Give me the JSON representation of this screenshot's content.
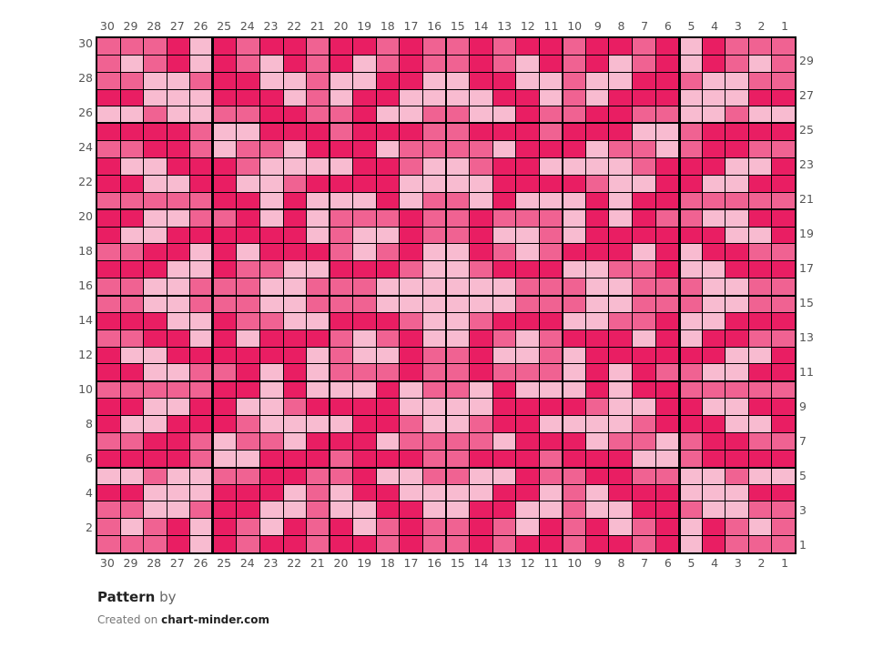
{
  "palette": {
    "D": "#E91E63",
    "M": "#F06292",
    "L": "#F8BBD0"
  },
  "grid": {
    "columns": 30,
    "rows": 30,
    "column_labels": [
      "30",
      "29",
      "28",
      "27",
      "26",
      "25",
      "24",
      "23",
      "22",
      "21",
      "20",
      "19",
      "18",
      "17",
      "16",
      "15",
      "14",
      "13",
      "12",
      "11",
      "10",
      "9",
      "8",
      "7",
      "6",
      "5",
      "4",
      "3",
      "2",
      "1"
    ],
    "left_row_labels": [
      "30",
      "28",
      "26",
      "24",
      "22",
      "20",
      "18",
      "16",
      "14",
      "12",
      "10",
      "8",
      "6",
      "4",
      "2"
    ],
    "right_row_labels": [
      "29",
      "27",
      "25",
      "23",
      "21",
      "19",
      "17",
      "15",
      "13",
      "11",
      "9",
      "7",
      "5",
      "3",
      "1"
    ],
    "cells_top_to_bottom": [
      "MMMDLDMDDMDDMDMMDMDDMDDMDLDMMM",
      "MLMDLDMLDMDLMDMMDMLDMDLMDLDMLM",
      "MMLLMDDLLMLLDDLLDDLLMLLDDMLLMM",
      "DDLLLDDDLMLDDLLLLDDLMLDDDLLLDD",
      "LLMLLMMDDMMDLLMMLLDMMDDMMLLMLL",
      "DDDDMLLDDDMDDDMMDDDMDDDLLMDDDD",
      "MMDDMLMMLDDDLMMMMLDDDLMMLMDDMM",
      "DLLDDDMLLLLDDMLLMDDLLLLMDDDLLD",
      "DDLLDDLLMDDDDLLLLDDDDMLLDDLLDD",
      "MMMMMDDLDLLLDLMMLDLLLDLDDMMMMM",
      "DDLLMMDLDLMMMDMMDMMMLDLDMMLLDD",
      "DLLDDDDDDLMLLDMMDLLMLDDDDDDLLD",
      "MMDDLDLDDDMLMDLLDMLMDDDLDLDDMM",
      "DDDLLDMMLLDDDMLLMDDDLLMMDLLDDD",
      "MMLLMMMLLMMMLLLLLLMMMLLMMMLLMM",
      "MMLLMMMLLMMMLLLLLLMMMLLMMMLLMM",
      "DDDLLDMMLLDDDMLLMDDDLLMMDLLDDD",
      "MMDDLDLDDDMLMDLLDMLMDDDLDLDDMM",
      "DLLDDDDDDLMLLDMMDLLMLDDDDDDLLD",
      "DDLLMMDLDLMMMDMMDMMMLDLDMMLLDD",
      "MMMMMDDLDLLLDLMMLDLLLDLDDMMMMM",
      "DDLLDDLLMDDDDLLLLDDDDMLLDDLLDD",
      "DLLDDDMLLLLDDMLLMDDLLLLMDDDLLD",
      "MMDDMLMMLDDDLMMMMLDDDLMMLMDDMM",
      "DDDDMLLDDDMDDDMMDDDMDDDLLMDDDD",
      "LLMLLMMDDMMDLLMMLLDMMDDMMLLMLL",
      "DDLLLDDDLMLDDLLLLDDLMLDDDLLLDD",
      "MMLLMDDLLMLLDDLLDDLLMLLDDMLLMM",
      "MLMDLDMLDMDLMDMMDMLDMDLMDLDMLM",
      "MMMDLDMDDMDDMDMMDMDDMDDMDLDMMM"
    ]
  },
  "footer": {
    "title_bold": "Pattern",
    "title_rest": "by",
    "credit_prefix": "Created on",
    "credit_site": "chart-minder.com"
  }
}
